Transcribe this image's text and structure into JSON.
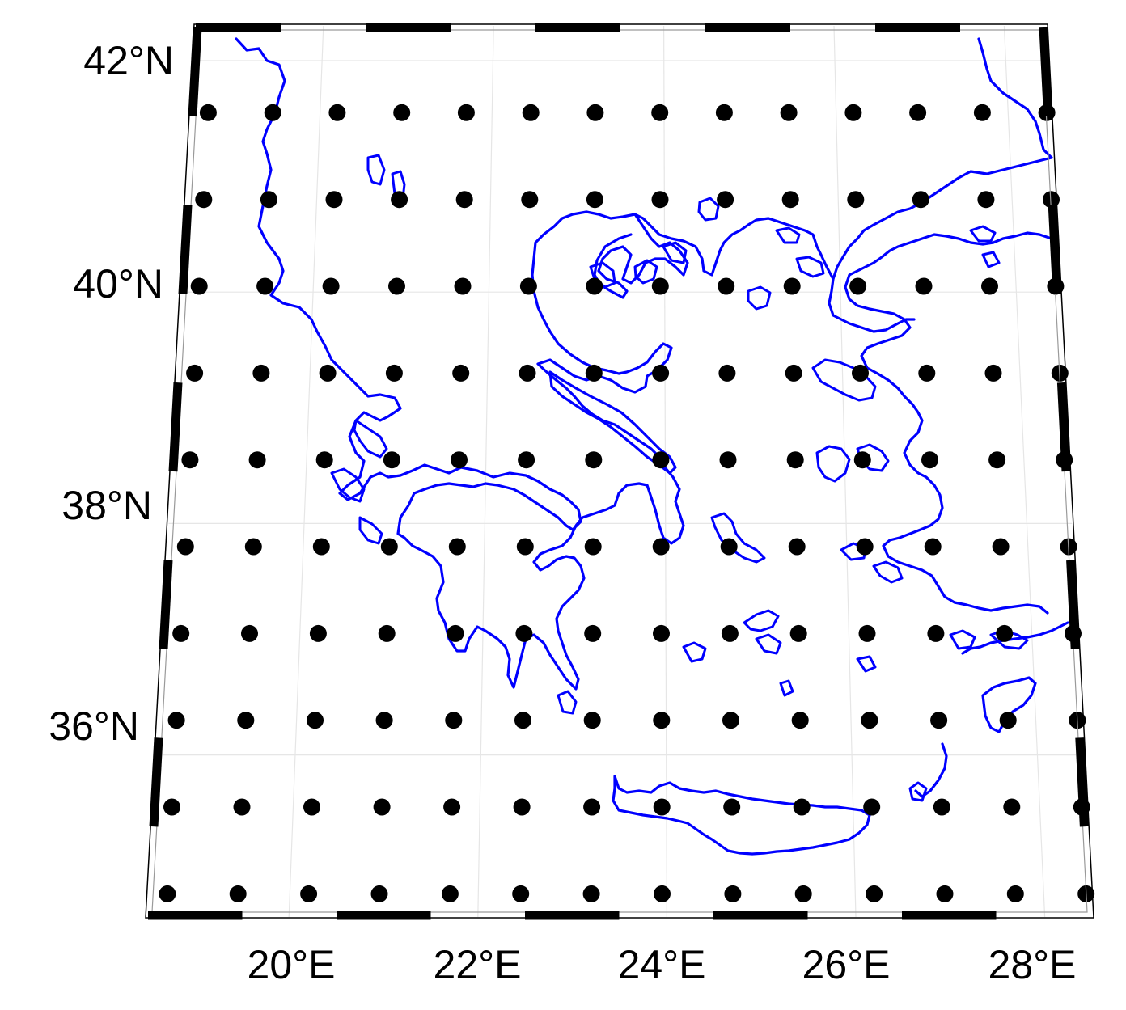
{
  "map": {
    "lon_labels": [
      "20°E",
      "22°E",
      "24°E",
      "26°E",
      "28°E"
    ],
    "lat_labels": [
      "42°N",
      "40°N",
      "38°N",
      "36°N"
    ],
    "lon_values": [
      20,
      22,
      24,
      26,
      28
    ],
    "lat_values": [
      42,
      40,
      38,
      36
    ],
    "extent": {
      "lon": [
        18.5,
        28.5
      ],
      "lat": [
        34.6,
        42.3
      ]
    },
    "grid_points": {
      "lon_start": 18.7,
      "lon_step": 0.75,
      "lon_count": 14,
      "lat_start": 34.8,
      "lat_step": 0.75,
      "lat_count": 10
    },
    "colors": {
      "coastline": "#0000ff",
      "point": "#000000",
      "frame": "#000000",
      "graticule": "#e6e6e6"
    }
  }
}
